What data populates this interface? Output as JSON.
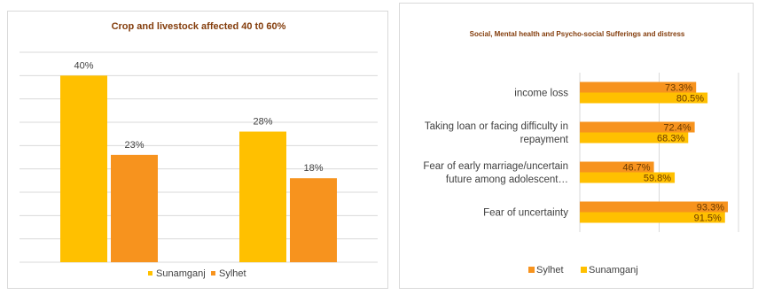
{
  "colors": {
    "sunamganj": "#ffc000",
    "sylhet": "#f7931e",
    "title": "#833c0b",
    "grid": "#d9d9d9",
    "text": "#404040"
  },
  "chart_data": [
    {
      "type": "bar",
      "title": "Crop and livestock affected 40 t0 60%",
      "categories": [
        "",
        ""
      ],
      "series": [
        {
          "name": "Sunamganj",
          "values": [
            40,
            28
          ],
          "labels": [
            "40%",
            "28%"
          ]
        },
        {
          "name": "Sylhet",
          "values": [
            23,
            18
          ],
          "labels": [
            "23%",
            "18%"
          ]
        }
      ],
      "ylim": [
        0,
        45
      ],
      "grid": true,
      "legend": "bottom",
      "legend_entries": [
        "Sunamganj",
        "Sylhet"
      ]
    },
    {
      "type": "bar",
      "orientation": "horizontal",
      "title": "Social, Mental health and Psycho-social Sufferings and distress",
      "categories": [
        [
          "income loss"
        ],
        [
          "Taking loan or facing difficulty in",
          "repayment"
        ],
        [
          "Fear of early marriage/uncertain",
          "future among adolescent…"
        ],
        [
          "Fear of uncertainty"
        ]
      ],
      "series": [
        {
          "name": "Sylhet",
          "values": [
            73.3,
            72.4,
            46.7,
            93.3
          ],
          "labels": [
            "73.3%",
            "72.4%",
            "46.7%",
            "93.3%"
          ]
        },
        {
          "name": "Sunamganj",
          "values": [
            80.5,
            68.3,
            59.8,
            91.5
          ],
          "labels": [
            "80.5%",
            "68.3%",
            "59.8%",
            "91.5%"
          ]
        }
      ],
      "xlim": [
        0,
        100
      ],
      "grid": true,
      "legend": "bottom",
      "legend_entries": [
        "Sylhet",
        "Sunamganj"
      ]
    }
  ]
}
